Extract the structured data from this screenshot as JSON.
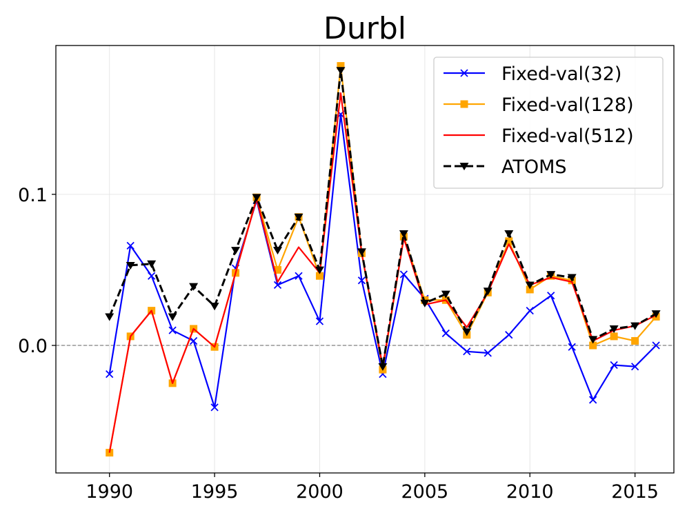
{
  "chart_data": {
    "type": "line",
    "title": "Durbl",
    "xlabel": "",
    "ylabel": "",
    "x": [
      1990,
      1991,
      1992,
      1993,
      1994,
      1995,
      1996,
      1997,
      1998,
      1999,
      2000,
      2001,
      2002,
      2003,
      2004,
      2005,
      2006,
      2007,
      2008,
      2009,
      2010,
      2011,
      2012,
      2013,
      2014,
      2015,
      2016
    ],
    "xlim": [
      1987.45,
      2016.85
    ],
    "ylim": [
      -0.0844,
      0.1985
    ],
    "xticks": [
      1990,
      1995,
      2000,
      2005,
      2010,
      2015
    ],
    "xtick_labels": [
      "1990",
      "1995",
      "2000",
      "2005",
      "2010",
      "2015"
    ],
    "yticks": [
      0.0,
      0.1
    ],
    "ytick_labels": [
      "0.0",
      "0.1"
    ],
    "grid": true,
    "reference_line": {
      "y": 0.0,
      "style": "dashed",
      "color": "#808080"
    },
    "legend_position": "top-right",
    "series": [
      {
        "name": "Fixed-val(32)",
        "color": "#0000ff",
        "line_style": "solid",
        "marker": "x",
        "values": [
          -0.019,
          0.066,
          0.046,
          0.01,
          0.003,
          -0.041,
          0.051,
          0.096,
          0.04,
          0.046,
          0.016,
          0.153,
          0.043,
          -0.019,
          0.047,
          0.031,
          0.008,
          -0.004,
          -0.005,
          0.007,
          0.023,
          0.033,
          -0.001,
          -0.036,
          -0.013,
          -0.014,
          0.0
        ]
      },
      {
        "name": "Fixed-val(128)",
        "color": "#ffa500",
        "line_style": "solid",
        "marker": "s",
        "values": [
          -0.071,
          0.006,
          0.023,
          -0.025,
          0.011,
          -0.001,
          0.048,
          0.098,
          0.05,
          0.085,
          0.046,
          0.185,
          0.061,
          -0.016,
          0.072,
          0.03,
          0.03,
          0.007,
          0.035,
          0.069,
          0.037,
          0.046,
          0.043,
          0.0,
          0.006,
          0.003,
          0.019
        ]
      },
      {
        "name": "Fixed-val(512)",
        "color": "#ff0000",
        "line_style": "solid",
        "marker": "none",
        "values": [
          -0.071,
          0.006,
          0.023,
          -0.025,
          0.011,
          -0.001,
          0.048,
          0.097,
          0.042,
          0.065,
          0.048,
          0.167,
          0.061,
          -0.014,
          0.071,
          0.027,
          0.03,
          0.012,
          0.035,
          0.067,
          0.04,
          0.045,
          0.042,
          0.003,
          0.01,
          0.013,
          0.02
        ]
      },
      {
        "name": "ATOMS",
        "color": "#000000",
        "line_style": "dashed",
        "marker": "v",
        "values": [
          0.019,
          0.053,
          0.054,
          0.019,
          0.039,
          0.026,
          0.063,
          0.098,
          0.063,
          0.085,
          0.05,
          0.182,
          0.062,
          -0.014,
          0.074,
          0.028,
          0.034,
          0.009,
          0.036,
          0.074,
          0.04,
          0.047,
          0.045,
          0.004,
          0.011,
          0.013,
          0.021
        ]
      }
    ]
  }
}
